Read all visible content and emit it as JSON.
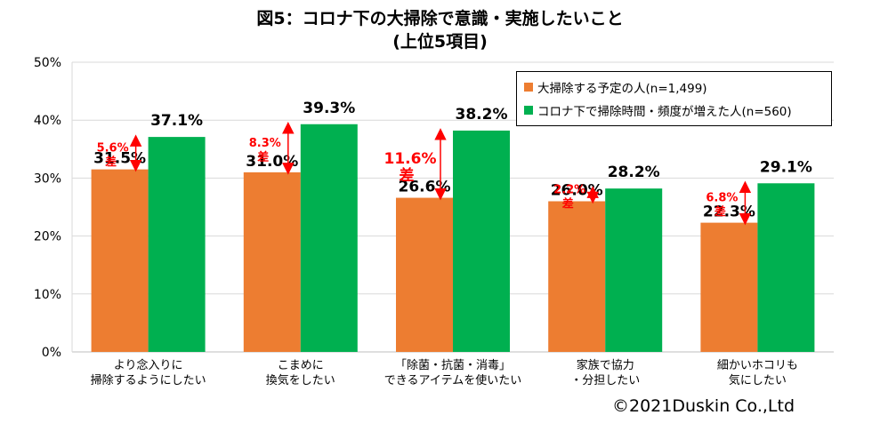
{
  "title": {
    "line1": "図5：コロナ下の大掃除で意識・実施したいこと",
    "line2": "(上位5項目)"
  },
  "copyright": "©2021Duskin Co.,Ltd",
  "colors": {
    "series1": "#ED7D31",
    "series2": "#00B050",
    "diff": "#FF0000",
    "grid": "#D9D9D9"
  },
  "chart_data": {
    "type": "bar",
    "categories": [
      [
        "より念入りに",
        "掃除するようにしたい"
      ],
      [
        "こまめに",
        "換気をしたい"
      ],
      [
        "「除菌・抗菌・消毒」",
        "できるアイテムを使いたい"
      ],
      [
        "家族で協力",
        "・分担したい"
      ],
      [
        "細かいホコリも",
        "気にしたい"
      ]
    ],
    "series": [
      {
        "name": "大掃除する予定の人(n=1,499)",
        "values": [
          31.5,
          31.0,
          26.6,
          26.0,
          22.3
        ]
      },
      {
        "name": "コロナ下で掃除時間・頻度が増えた人(n=560)",
        "values": [
          37.1,
          39.3,
          38.2,
          28.2,
          29.1
        ]
      }
    ],
    "value_labels": [
      [
        "31.5%",
        "31.0%",
        "26.6%",
        "26.0%",
        "22.3%"
      ],
      [
        "37.1%",
        "39.3%",
        "38.2%",
        "28.2%",
        "29.1%"
      ]
    ],
    "differences": [
      {
        "value": "5.6%",
        "suffix": "差"
      },
      {
        "value": "8.3%",
        "suffix": "差"
      },
      {
        "value": "11.6%",
        "suffix": "差"
      },
      {
        "value": "2.2%",
        "suffix": "差"
      },
      {
        "value": "6.8%",
        "suffix": "差"
      }
    ],
    "y_ticks": [
      "0%",
      "10%",
      "20%",
      "30%",
      "40%",
      "50%"
    ],
    "ylim": [
      0,
      50
    ],
    "grid": true,
    "legend_position": "top-right"
  }
}
